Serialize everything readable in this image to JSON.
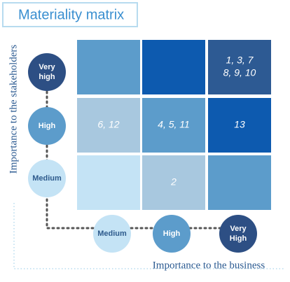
{
  "title": "Materiality matrix",
  "y_axis": {
    "label": "Importance to the stakeholders",
    "levels": [
      "Very high",
      "High",
      "Medium"
    ]
  },
  "x_axis": {
    "label": "Importance to the business",
    "levels": [
      "Medium",
      "High",
      "Very High"
    ]
  },
  "grid": {
    "rows": [
      [
        [],
        [],
        [
          "1, 3, 7",
          "8, 9, 10"
        ]
      ],
      [
        [
          "6, 12"
        ],
        [
          "4, 5, 11"
        ],
        [
          "13"
        ]
      ],
      [
        [],
        [
          "2"
        ],
        []
      ]
    ]
  }
}
